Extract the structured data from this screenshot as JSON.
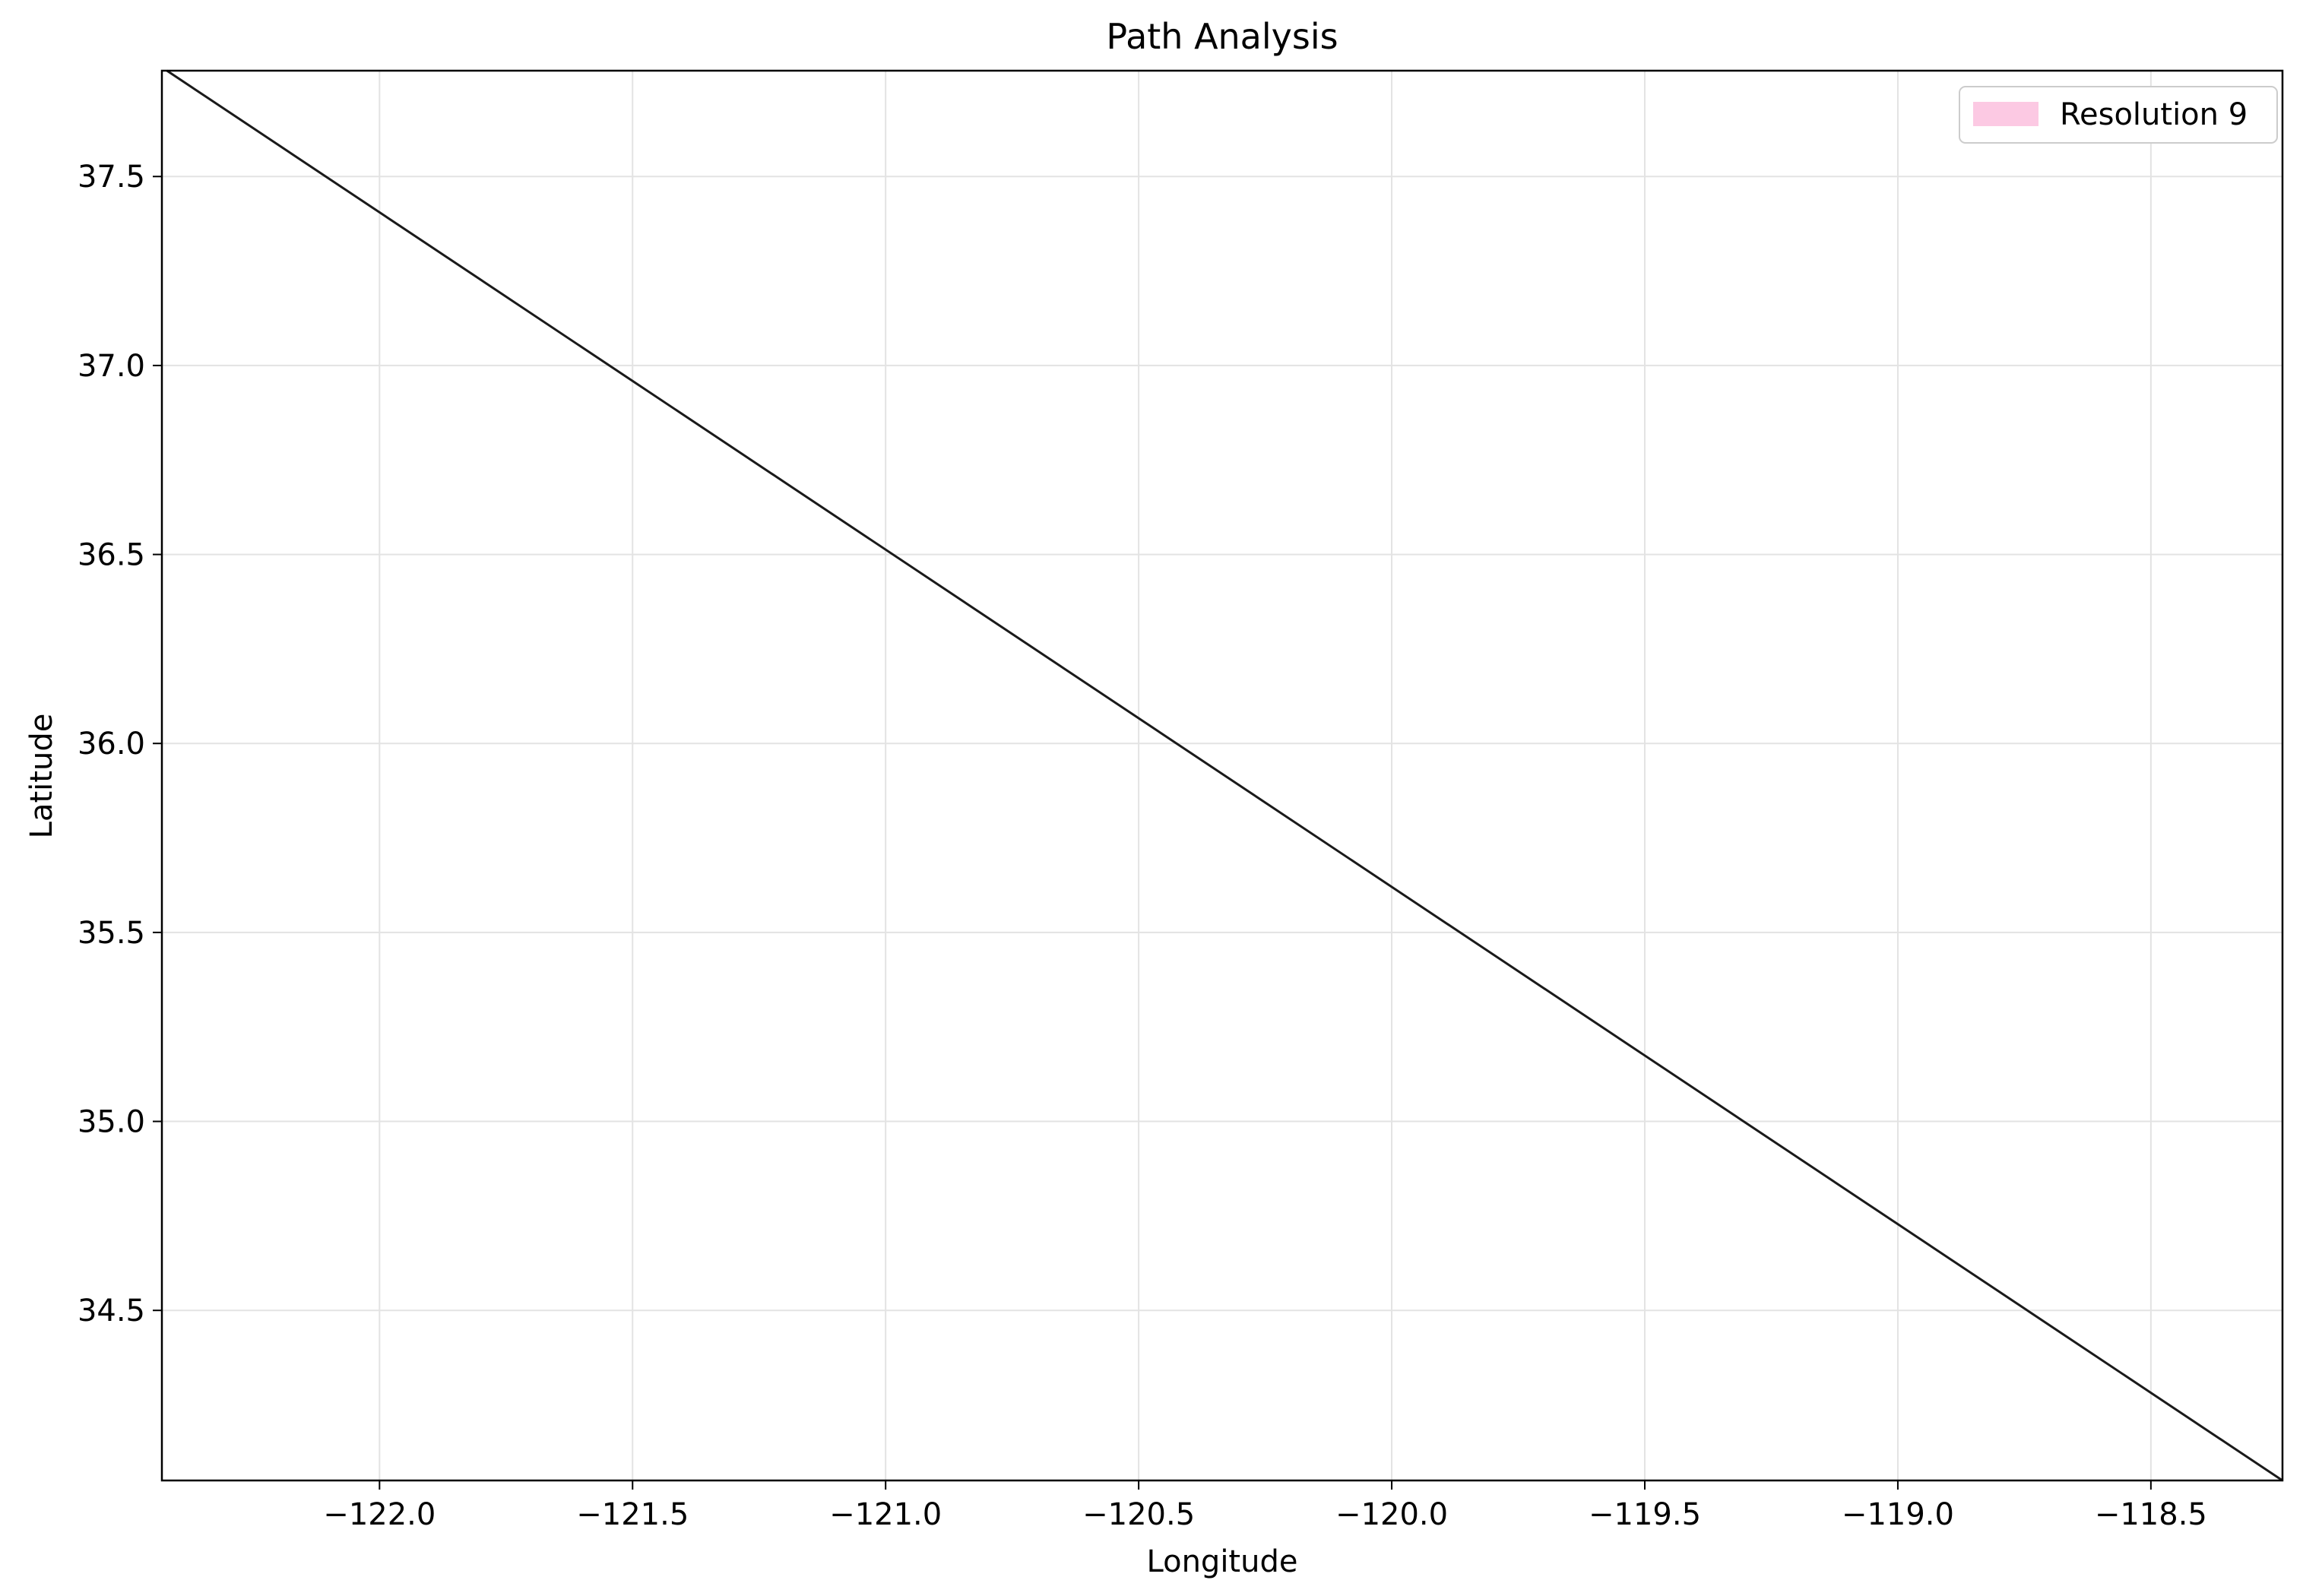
{
  "chart_data": {
    "type": "line",
    "title": "Path Analysis",
    "xlabel": "Longitude",
    "ylabel": "Latitude",
    "xlim": [
      -122.43,
      -118.24
    ],
    "ylim": [
      34.05,
      37.78
    ],
    "x_ticks": [
      -122.0,
      -121.5,
      -121.0,
      -120.5,
      -120.0,
      -119.5,
      -119.0,
      -118.5
    ],
    "x_tick_labels": [
      "−122.0",
      "−121.5",
      "−121.0",
      "−120.5",
      "−120.0",
      "−119.5",
      "−119.0",
      "−118.5"
    ],
    "y_ticks": [
      34.5,
      35.0,
      35.5,
      36.0,
      36.5,
      37.0,
      37.5
    ],
    "y_tick_labels": [
      "34.5",
      "35.0",
      "35.5",
      "36.0",
      "36.5",
      "37.0",
      "37.5"
    ],
    "grid": true,
    "legend_position": "top-right",
    "legend": [
      {
        "label": "Resolution 9",
        "color": "#fcc9e3"
      }
    ],
    "series": [
      {
        "line_color": "#1a1a1a",
        "points": [
          {
            "x": -122.42,
            "y": 37.78
          },
          {
            "x": -118.24,
            "y": 34.05
          }
        ]
      }
    ]
  }
}
